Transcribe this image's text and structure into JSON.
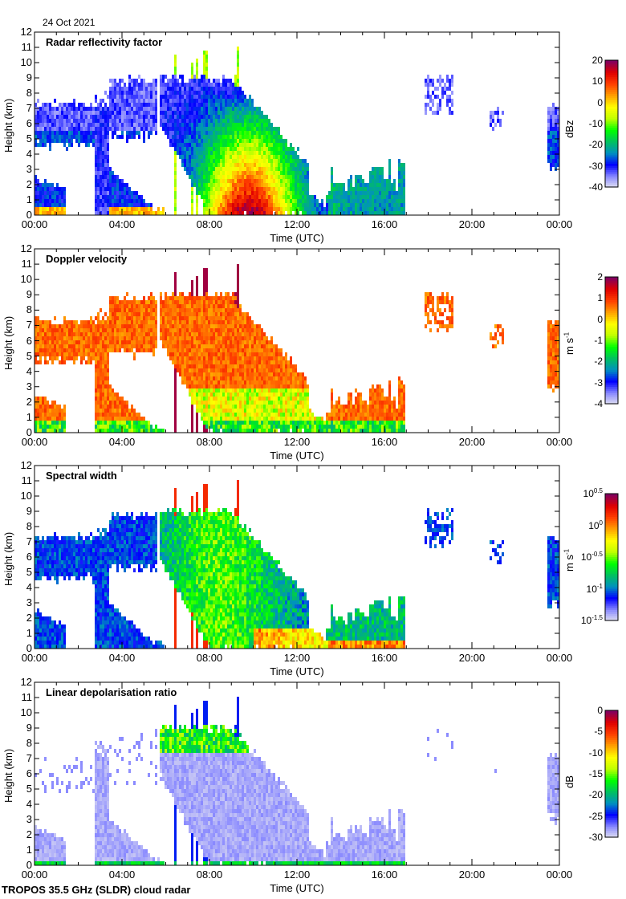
{
  "date_label": "24 Oct 2021",
  "footer": "TROPOS 35.5 GHz (SLDR) cloud radar",
  "chart_data": [
    {
      "type": "heatmap",
      "title": "Radar reflectivity factor",
      "xlabel": "Time (UTC)",
      "ylabel": "Height (km)",
      "xlim": [
        "00:00",
        "00:00"
      ],
      "x_ticks": [
        "00:00",
        "04:00",
        "08:00",
        "12:00",
        "16:00",
        "20:00",
        "00:00"
      ],
      "ylim": [
        0,
        12
      ],
      "y_ticks": [
        "0",
        "1",
        "2",
        "3",
        "4",
        "5",
        "6",
        "7",
        "8",
        "9",
        "10",
        "11",
        "12"
      ],
      "colorbar": {
        "unit": "dBz",
        "unit_sup": "",
        "range": [
          -40,
          20
        ],
        "ticks": [
          {
            "base": "20",
            "sup": ""
          },
          {
            "base": "10",
            "sup": ""
          },
          {
            "base": "0",
            "sup": ""
          },
          {
            "base": "-10",
            "sup": ""
          },
          {
            "base": "-20",
            "sup": ""
          },
          {
            "base": "-30",
            "sup": ""
          },
          {
            "base": "-40",
            "sup": ""
          }
        ]
      }
    },
    {
      "type": "heatmap",
      "title": "Doppler velocity",
      "xlabel": "Time (UTC)",
      "ylabel": "Height (km)",
      "xlim": [
        "00:00",
        "00:00"
      ],
      "x_ticks": [
        "00:00",
        "04:00",
        "08:00",
        "12:00",
        "16:00",
        "20:00",
        "00:00"
      ],
      "ylim": [
        0,
        12
      ],
      "y_ticks": [
        "0",
        "1",
        "2",
        "3",
        "4",
        "5",
        "6",
        "7",
        "8",
        "9",
        "10",
        "11",
        "12"
      ],
      "colorbar": {
        "unit": "m s",
        "unit_sup": "-1",
        "range": [
          -4,
          2
        ],
        "ticks": [
          {
            "base": "2",
            "sup": ""
          },
          {
            "base": "1",
            "sup": ""
          },
          {
            "base": "0",
            "sup": ""
          },
          {
            "base": "-1",
            "sup": ""
          },
          {
            "base": "-2",
            "sup": ""
          },
          {
            "base": "-3",
            "sup": ""
          },
          {
            "base": "-4",
            "sup": ""
          }
        ]
      }
    },
    {
      "type": "heatmap",
      "title": "Spectral width",
      "xlabel": "Time (UTC)",
      "ylabel": "Height (km)",
      "xlim": [
        "00:00",
        "00:00"
      ],
      "x_ticks": [
        "00:00",
        "04:00",
        "08:00",
        "12:00",
        "16:00",
        "20:00",
        "00:00"
      ],
      "ylim": [
        0,
        12
      ],
      "y_ticks": [
        "0",
        "1",
        "2",
        "3",
        "4",
        "5",
        "6",
        "7",
        "8",
        "9",
        "10",
        "11",
        "12"
      ],
      "colorbar": {
        "unit": "m s",
        "unit_sup": "-1",
        "scale": "log",
        "range": [
          -1.5,
          0.5
        ],
        "ticks": [
          {
            "base": "10",
            "sup": "0.5"
          },
          {
            "base": "10",
            "sup": "0"
          },
          {
            "base": "10",
            "sup": "-0.5"
          },
          {
            "base": "10",
            "sup": "-1"
          },
          {
            "base": "10",
            "sup": "-1.5"
          }
        ]
      }
    },
    {
      "type": "heatmap",
      "title": "Linear depolarisation ratio",
      "xlabel": "Time (UTC)",
      "ylabel": "Height (km)",
      "xlim": [
        "00:00",
        "00:00"
      ],
      "x_ticks": [
        "00:00",
        "04:00",
        "08:00",
        "12:00",
        "16:00",
        "20:00",
        "00:00"
      ],
      "ylim": [
        0,
        12
      ],
      "y_ticks": [
        "0",
        "1",
        "2",
        "3",
        "4",
        "5",
        "6",
        "7",
        "8",
        "9",
        "10",
        "11",
        "12"
      ],
      "colorbar": {
        "unit": "dB",
        "unit_sup": "",
        "range": [
          -30,
          0
        ],
        "ticks": [
          {
            "base": "0",
            "sup": ""
          },
          {
            "base": "-5",
            "sup": ""
          },
          {
            "base": "-10",
            "sup": ""
          },
          {
            "base": "-15",
            "sup": ""
          },
          {
            "base": "-20",
            "sup": ""
          },
          {
            "base": "-25",
            "sup": ""
          },
          {
            "base": "-30",
            "sup": ""
          }
        ]
      }
    }
  ],
  "colormap": [
    "#e4e4f0",
    "#8888ff",
    "#0000ff",
    "#0090c0",
    "#00c060",
    "#00ff00",
    "#c0ff00",
    "#ffff00",
    "#ffa000",
    "#ff4000",
    "#e00000",
    "#800060"
  ]
}
